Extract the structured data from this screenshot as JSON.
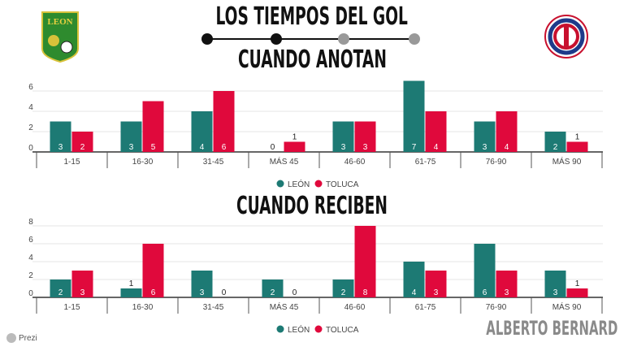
{
  "header": {
    "title": "LOS TIEMPOS DEL GOL",
    "progress": {
      "steps": 4,
      "active": 2
    }
  },
  "logos": {
    "left": "LEON",
    "right": "CLUB DEPORTIVO TOLUCA"
  },
  "footer": {
    "author": "ALBERTO BERNARD",
    "platform": "Prezi"
  },
  "colors": {
    "leon": "#1d7a74",
    "toluca": "#e0093c"
  },
  "chart_data": [
    {
      "type": "bar",
      "title": "CUANDO ANOTAN",
      "categories": [
        "1-15",
        "16-30",
        "31-45",
        "MÁS 45",
        "46-60",
        "61-75",
        "76-90",
        "MÁS 90"
      ],
      "series": [
        {
          "name": "LEÓN",
          "values": [
            3,
            3,
            4,
            0,
            3,
            7,
            3,
            2
          ]
        },
        {
          "name": "TOLUCA",
          "values": [
            2,
            5,
            6,
            1,
            3,
            4,
            4,
            1
          ]
        }
      ],
      "yticks": [
        0,
        2,
        4,
        6
      ],
      "ylim": [
        0,
        7
      ],
      "legend": "bottom-center",
      "grid": true
    },
    {
      "type": "bar",
      "title": "CUANDO RECIBEN",
      "categories": [
        "1-15",
        "16-30",
        "31-45",
        "MÁS 45",
        "46-60",
        "61-75",
        "76-90",
        "MÁS 90"
      ],
      "series": [
        {
          "name": "LEÓN",
          "values": [
            2,
            1,
            3,
            2,
            2,
            4,
            6,
            3
          ]
        },
        {
          "name": "TOLUCA",
          "values": [
            3,
            6,
            0,
            0,
            8,
            3,
            3,
            1
          ]
        }
      ],
      "yticks": [
        0,
        2,
        4,
        6,
        8
      ],
      "ylim": [
        0,
        8
      ],
      "legend": "bottom-center",
      "grid": true
    }
  ]
}
